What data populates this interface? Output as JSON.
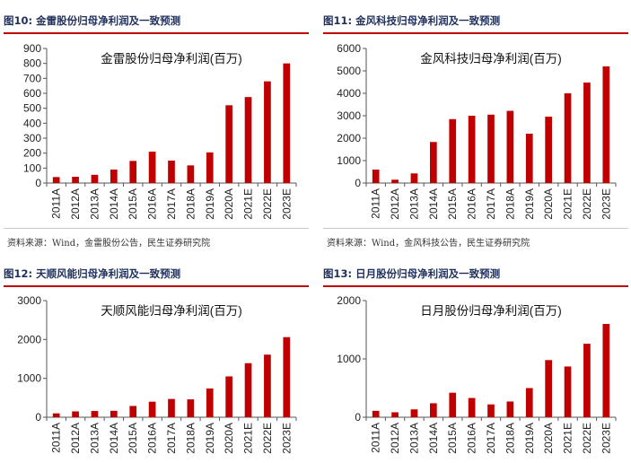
{
  "colors": {
    "bar": "#c00000",
    "header_text": "#1f2f5c",
    "rule": "#c00000"
  },
  "chart_data": [
    {
      "type": "bar",
      "figure_label": "图10: 金雷股份归母净利润及一致预测",
      "title": "金雷股份归母净利润(百万)",
      "categories": [
        "2011A",
        "2012A",
        "2013A",
        "2014A",
        "2015A",
        "2016A",
        "2017A",
        "2018A",
        "2019A",
        "2020A",
        "2021E",
        "2022E",
        "2023E"
      ],
      "values": [
        40,
        42,
        55,
        90,
        148,
        210,
        150,
        118,
        205,
        520,
        575,
        680,
        800
      ],
      "ylim": [
        0,
        900
      ],
      "yticks": [
        0,
        100,
        200,
        300,
        400,
        500,
        600,
        700,
        800,
        900
      ],
      "xlabel": "",
      "ylabel": "",
      "grid": false,
      "source": "资料来源：Wind，金雷股份公告，民生证券研究院"
    },
    {
      "type": "bar",
      "figure_label": "图11: 金风科技归母净利润及一致预测",
      "title": "金风科技归母净利润(百万)",
      "categories": [
        "2011A",
        "2012A",
        "2013A",
        "2014A",
        "2015A",
        "2016A",
        "2017A",
        "2018A",
        "2019A",
        "2020A",
        "2021E",
        "2022E",
        "2023E"
      ],
      "values": [
        600,
        150,
        430,
        1830,
        2850,
        3000,
        3050,
        3220,
        2200,
        2960,
        4000,
        4480,
        5200
      ],
      "ylim": [
        0,
        6000
      ],
      "yticks": [
        0,
        1000,
        2000,
        3000,
        4000,
        5000,
        6000
      ],
      "xlabel": "",
      "ylabel": "",
      "grid": false,
      "source": "资料来源：Wind，金风科技公告，民生证券研究院"
    },
    {
      "type": "bar",
      "figure_label": "图12: 天顺风能归母净利润及一致预测",
      "title": "天顺风能归母净利润(百万)",
      "categories": [
        "2011A",
        "2012A",
        "2013A",
        "2014A",
        "2015A",
        "2016A",
        "2017A",
        "2018A",
        "2019A",
        "2020A",
        "2021E",
        "2022E",
        "2023E"
      ],
      "values": [
        100,
        150,
        160,
        165,
        290,
        400,
        470,
        460,
        740,
        1050,
        1390,
        1610,
        2060
      ],
      "ylim": [
        0,
        3000
      ],
      "yticks": [
        0,
        1000,
        2000,
        3000
      ],
      "xlabel": "",
      "ylabel": "",
      "grid": false
    },
    {
      "type": "bar",
      "figure_label": "图13: 日月股份归母净利润及一致预测",
      "title": "日月股份归母净利润(百万)",
      "categories": [
        "2011A",
        "2012A",
        "2013A",
        "2014A",
        "2015A",
        "2016A",
        "2017A",
        "2018A",
        "2019A",
        "2020A",
        "2021E",
        "2022E",
        "2023E"
      ],
      "values": [
        110,
        85,
        135,
        240,
        420,
        330,
        220,
        270,
        500,
        980,
        870,
        1260,
        1600
      ],
      "ylim": [
        0,
        2000
      ],
      "yticks": [
        0,
        1000,
        2000
      ],
      "xlabel": "",
      "ylabel": "",
      "grid": false
    }
  ]
}
